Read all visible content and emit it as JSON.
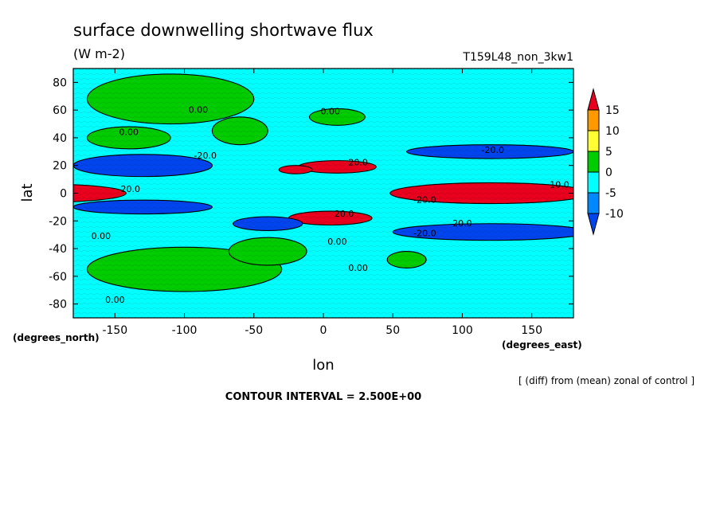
{
  "chart_data": {
    "type": "heatmap",
    "title": "surface downwelling shortwave flux",
    "units": "(W m-2)",
    "run_label": "T159L48_non_3kw1",
    "xlabel": "lon",
    "ylabel": "lat",
    "x_unit_label": "(degrees_east)",
    "y_unit_label": "(degrees_north)",
    "xlim": [
      -180,
      180
    ],
    "ylim": [
      -90,
      90
    ],
    "x_ticks": [
      -150,
      -100,
      -50,
      0,
      50,
      100,
      150
    ],
    "y_ticks": [
      -80,
      -60,
      -40,
      -20,
      0,
      20,
      40,
      60,
      80
    ],
    "legend_levels": [
      15,
      10,
      5,
      0,
      -5,
      -10
    ],
    "legend_colors": [
      "#e8001e",
      "#ff9900",
      "#ffff33",
      "#00cc00",
      "#00ffff",
      "#0088ff",
      "#0044ee"
    ],
    "legend_placement": "right",
    "grid": false,
    "footnote": "[ (diff) from (mean) zonal of control ]",
    "contour_interval_text": "CONTOUR INTERVAL = 2.500E+00",
    "contour_labels": [
      {
        "text": "0.00",
        "lon": 5,
        "lat": 57
      },
      {
        "text": "0.00",
        "lon": -140,
        "lat": 42
      },
      {
        "text": "0.00",
        "lon": -90,
        "lat": 58
      },
      {
        "text": "-20.0",
        "lon": 122,
        "lat": 29
      },
      {
        "text": "-20.0",
        "lon": -85,
        "lat": 25
      },
      {
        "text": "20.0",
        "lon": 25,
        "lat": 20
      },
      {
        "text": "-20.0",
        "lon": -140,
        "lat": 1
      },
      {
        "text": "-20.0",
        "lon": 73,
        "lat": -7
      },
      {
        "text": "20.0",
        "lon": 15,
        "lat": -17
      },
      {
        "text": "20.0",
        "lon": 100,
        "lat": -24
      },
      {
        "text": "0.00",
        "lon": 10,
        "lat": -37
      },
      {
        "text": "0.00",
        "lon": 25,
        "lat": -56
      },
      {
        "text": "-20.0",
        "lon": 73,
        "lat": -31
      },
      {
        "text": "0.00",
        "lon": -150,
        "lat": -79
      },
      {
        "text": "10.0",
        "lon": 170,
        "lat": 4
      },
      {
        "text": "0.00",
        "lon": -160,
        "lat": -33
      }
    ],
    "fields": [
      {
        "comment": "zonal background bands",
        "kind": "band"
      },
      {
        "value": 20,
        "color_index": 0,
        "regions": [
          {
            "lon": -200,
            "lat": 0,
            "rx": 58,
            "ry": 6.5
          },
          {
            "lon": 120,
            "lat": 0,
            "rx": 72,
            "ry": 7.5
          },
          {
            "lon": 10,
            "lat": 19,
            "rx": 28,
            "ry": 4.5
          },
          {
            "lon": 5,
            "lat": -18,
            "rx": 30,
            "ry": 5
          },
          {
            "lon": -20,
            "lat": 17,
            "rx": 12,
            "ry": 3
          }
        ]
      },
      {
        "value": -10,
        "color_index": 6,
        "regions": [
          {
            "lon": -130,
            "lat": 20,
            "rx": 50,
            "ry": 8
          },
          {
            "lon": 120,
            "lat": 30,
            "rx": 60,
            "ry": 5
          },
          {
            "lon": 120,
            "lat": -28,
            "rx": 70,
            "ry": 6
          },
          {
            "lon": -130,
            "lat": -10,
            "rx": 50,
            "ry": 5
          },
          {
            "lon": -40,
            "lat": -22,
            "rx": 25,
            "ry": 5
          }
        ]
      },
      {
        "value": 0,
        "color_index": 3,
        "regions": [
          {
            "lon": -110,
            "lat": 68,
            "rx": 60,
            "ry": 18
          },
          {
            "lon": -60,
            "lat": 45,
            "rx": 20,
            "ry": 10
          },
          {
            "lon": -100,
            "lat": -55,
            "rx": 70,
            "ry": 16
          },
          {
            "lon": -40,
            "lat": -42,
            "rx": 28,
            "ry": 10
          },
          {
            "lon": 60,
            "lat": -48,
            "rx": 14,
            "ry": 6
          },
          {
            "lon": -140,
            "lat": 40,
            "rx": 30,
            "ry": 8
          },
          {
            "lon": 10,
            "lat": 55,
            "rx": 20,
            "ry": 6
          }
        ]
      }
    ]
  }
}
